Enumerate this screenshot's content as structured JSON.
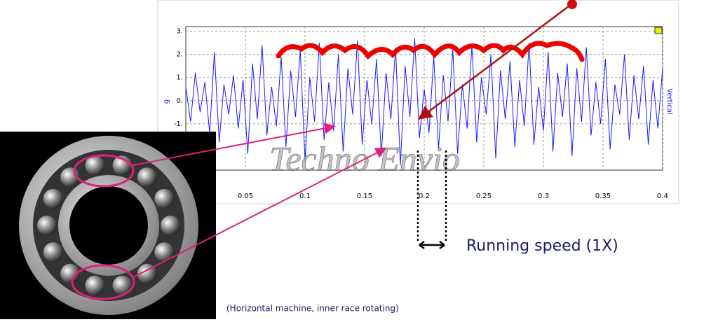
{
  "chart_data": {
    "type": "line",
    "x": [
      0,
      0.004,
      0.008,
      0.012,
      0.016,
      0.02,
      0.024,
      0.028,
      0.032,
      0.036,
      0.04,
      0.044,
      0.048,
      0.052,
      0.056,
      0.06,
      0.064,
      0.068,
      0.072,
      0.076,
      0.08,
      0.084,
      0.088,
      0.092,
      0.096,
      0.1,
      0.104,
      0.108,
      0.112,
      0.116,
      0.12,
      0.124,
      0.128,
      0.132,
      0.136,
      0.14,
      0.144,
      0.148,
      0.152,
      0.156,
      0.16,
      0.164,
      0.168,
      0.172,
      0.176,
      0.18,
      0.184,
      0.188,
      0.192,
      0.196,
      0.2,
      0.204,
      0.208,
      0.212,
      0.216,
      0.22,
      0.224,
      0.228,
      0.232,
      0.236,
      0.24,
      0.244,
      0.248,
      0.252,
      0.256,
      0.26,
      0.264,
      0.268,
      0.272,
      0.276,
      0.28,
      0.284,
      0.288,
      0.292,
      0.296,
      0.3,
      0.304,
      0.308,
      0.312,
      0.316,
      0.32,
      0.324,
      0.328,
      0.332,
      0.336,
      0.34,
      0.344,
      0.348,
      0.352,
      0.356,
      0.36,
      0.364,
      0.368,
      0.372,
      0.376,
      0.38,
      0.384,
      0.388,
      0.392,
      0.396,
      0.4
    ],
    "values": [
      0.6,
      -0.9,
      1.2,
      -0.5,
      0.8,
      -1.4,
      2.1,
      -1.8,
      0.7,
      -0.6,
      1.1,
      -1.2,
      0.9,
      -2.3,
      1.6,
      -0.8,
      2.4,
      -1.5,
      0.6,
      -1.1,
      1.9,
      -2.0,
      1.3,
      -0.7,
      2.2,
      -2.6,
      1.0,
      -0.9,
      2.5,
      -1.7,
      0.8,
      -1.3,
      2.0,
      -2.2,
      1.4,
      -0.6,
      2.6,
      -1.9,
      0.9,
      -1.0,
      1.8,
      -2.4,
      1.2,
      -0.8,
      2.3,
      -2.8,
      1.5,
      -0.7,
      2.7,
      -1.6,
      0.5,
      -1.4,
      1.9,
      -2.1,
      1.1,
      -0.9,
      2.2,
      -2.3,
      0.7,
      -1.2,
      2.4,
      -1.8,
      1.0,
      -0.6,
      2.0,
      -2.5,
      1.3,
      -0.8,
      1.7,
      -2.0,
      0.9,
      -1.1,
      2.5,
      -1.9,
      0.6,
      -1.3,
      2.1,
      -2.2,
      1.2,
      -0.7,
      1.6,
      -2.4,
      1.4,
      -0.9,
      2.3,
      -1.5,
      0.8,
      -1.0,
      1.8,
      -2.1,
      0.7,
      -0.6,
      2.0,
      -1.7,
      1.1,
      -0.8,
      1.5,
      -1.9,
      0.9,
      -1.2,
      1.4
    ],
    "color": "#1a1aff",
    "xlim": [
      0,
      0.4
    ],
    "xticks": [
      0.05,
      0.1,
      0.15,
      0.2,
      0.25,
      0.3,
      0.35,
      0.4
    ],
    "ylim": [
      -3,
      3.2
    ],
    "yticks": [
      {
        "value": -1,
        "label": "-1."
      },
      {
        "value": 0,
        "label": "0."
      },
      {
        "value": 1,
        "label": "1."
      },
      {
        "value": 2,
        "label": "2."
      },
      {
        "value": 3,
        "label": "3."
      }
    ],
    "grid": true,
    "ylabel": "g",
    "y2label": "Vertical",
    "watermark": "Techno Envio",
    "annotation": "Running speed (1X)",
    "caption": "(Horizontal machine, inner race rotating)"
  }
}
